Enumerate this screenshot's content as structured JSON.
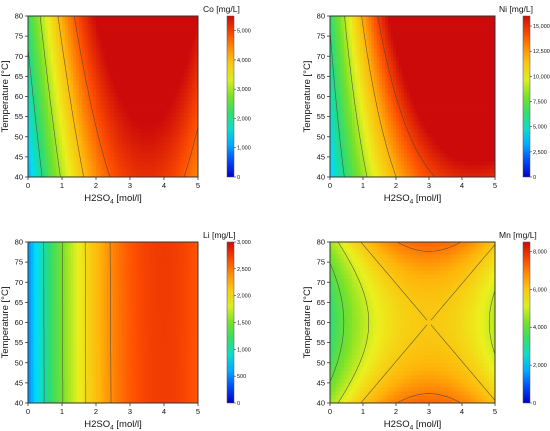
{
  "chart_data": [
    {
      "type": "heatmap",
      "colorbar_title": "Co [mg/L]",
      "xlabel": "H2SO4 [mol/l]",
      "ylabel": "Temperature [°C]",
      "xlim": [
        0,
        5
      ],
      "ylim": [
        40,
        80
      ],
      "xticks": [
        "0",
        "1",
        "2",
        "3",
        "4",
        "5"
      ],
      "yticks": [
        "40",
        "45",
        "50",
        "55",
        "60",
        "65",
        "70",
        "75",
        "80"
      ],
      "zlim": [
        0,
        5500
      ],
      "colorbar_ticks": [
        "0",
        "1,000",
        "2,000",
        "3,000",
        "4,000",
        "5,000"
      ],
      "colorbar_values": [
        0,
        1000,
        2000,
        3000,
        4000,
        5000
      ],
      "model": {
        "x_peak": 3.5,
        "x_curvature": 330,
        "temp_coeff": 28,
        "temp_x_coeff": 0,
        "offset": 1100,
        "zmin": 0,
        "zmax": 5500
      },
      "contour_levels": [
        1000,
        2000,
        3000,
        4000,
        4750
      ]
    },
    {
      "type": "heatmap",
      "colorbar_title": "Ni [mg/L]",
      "xlabel": "H2SO4 [mol/l]",
      "ylabel": "Temperature [°C]",
      "xlim": [
        0,
        5
      ],
      "ylim": [
        40,
        80
      ],
      "xticks": [
        "0",
        "1",
        "2",
        "3",
        "4",
        "5"
      ],
      "yticks": [
        "40",
        "45",
        "50",
        "55",
        "60",
        "65",
        "70",
        "75",
        "80"
      ],
      "zlim": [
        0,
        16000
      ],
      "colorbar_ticks": [
        "0",
        "2,500",
        "5,000",
        "7,500",
        "10,000",
        "12,500",
        "15,000"
      ],
      "colorbar_values": [
        0,
        2500,
        5000,
        7500,
        10000,
        12500,
        15000
      ],
      "model": {
        "x_peak": 4.3,
        "x_curvature": 620,
        "temp_coeff": 60,
        "temp_x_coeff": 33,
        "offset": 3800,
        "zmin": 0,
        "zmax": 16000
      },
      "contour_levels": [
        3000,
        6000,
        9000,
        12000,
        14500
      ]
    },
    {
      "type": "heatmap",
      "colorbar_title": "Li [mg/L]",
      "xlabel": "H2SO4 [mol/l]",
      "ylabel": "Temperature [°C]",
      "xlim": [
        0,
        5
      ],
      "ylim": [
        40,
        80
      ],
      "xticks": [
        "0",
        "1",
        "2",
        "3",
        "4",
        "5"
      ],
      "yticks": [
        "40",
        "45",
        "50",
        "55",
        "60",
        "65",
        "70",
        "75",
        "80"
      ],
      "zlim": [
        0,
        3000
      ],
      "colorbar_ticks": [
        "0",
        "500",
        "1,000",
        "1,500",
        "2,000",
        "2,500",
        "3,000"
      ],
      "colorbar_values": [
        0,
        500,
        1000,
        1500,
        2000,
        2500,
        3000
      ],
      "model": {
        "x_peak": 4.0,
        "x_curvature": 140,
        "temp_coeff": 0.3,
        "temp_x_coeff": 0,
        "offset": 500,
        "zmin": 0,
        "zmax": 3000
      },
      "contour_levels": [
        500,
        1000,
        1500,
        2000,
        2400
      ]
    },
    {
      "type": "heatmap",
      "colorbar_title": "Mn [mg/L]",
      "xlabel": "H2SO4 [mol/l]",
      "ylabel": "Temperature [°C]",
      "xlim": [
        0,
        5
      ],
      "ylim": [
        40,
        80
      ],
      "xticks": [
        "0",
        "1",
        "2",
        "3",
        "4",
        "5"
      ],
      "yticks": [
        "40",
        "45",
        "50",
        "55",
        "60",
        "65",
        "70",
        "75",
        "80"
      ],
      "zlim": [
        0,
        8500
      ],
      "colorbar_ticks": [
        "0",
        "2,000",
        "4,000",
        "6,000",
        "8,000"
      ],
      "colorbar_values": [
        0,
        2000,
        4000,
        6000,
        8000
      ],
      "model": {
        "x_peak": 3.0,
        "x_curvature": 300,
        "temp_coeff": 0,
        "temp_quad": 3.2,
        "temp_x_coeff": 0,
        "offset": 3300,
        "zmin": 0,
        "zmax": 8500
      },
      "contour_levels": [
        3000,
        4000,
        5000,
        6000,
        7000,
        8000
      ]
    }
  ]
}
